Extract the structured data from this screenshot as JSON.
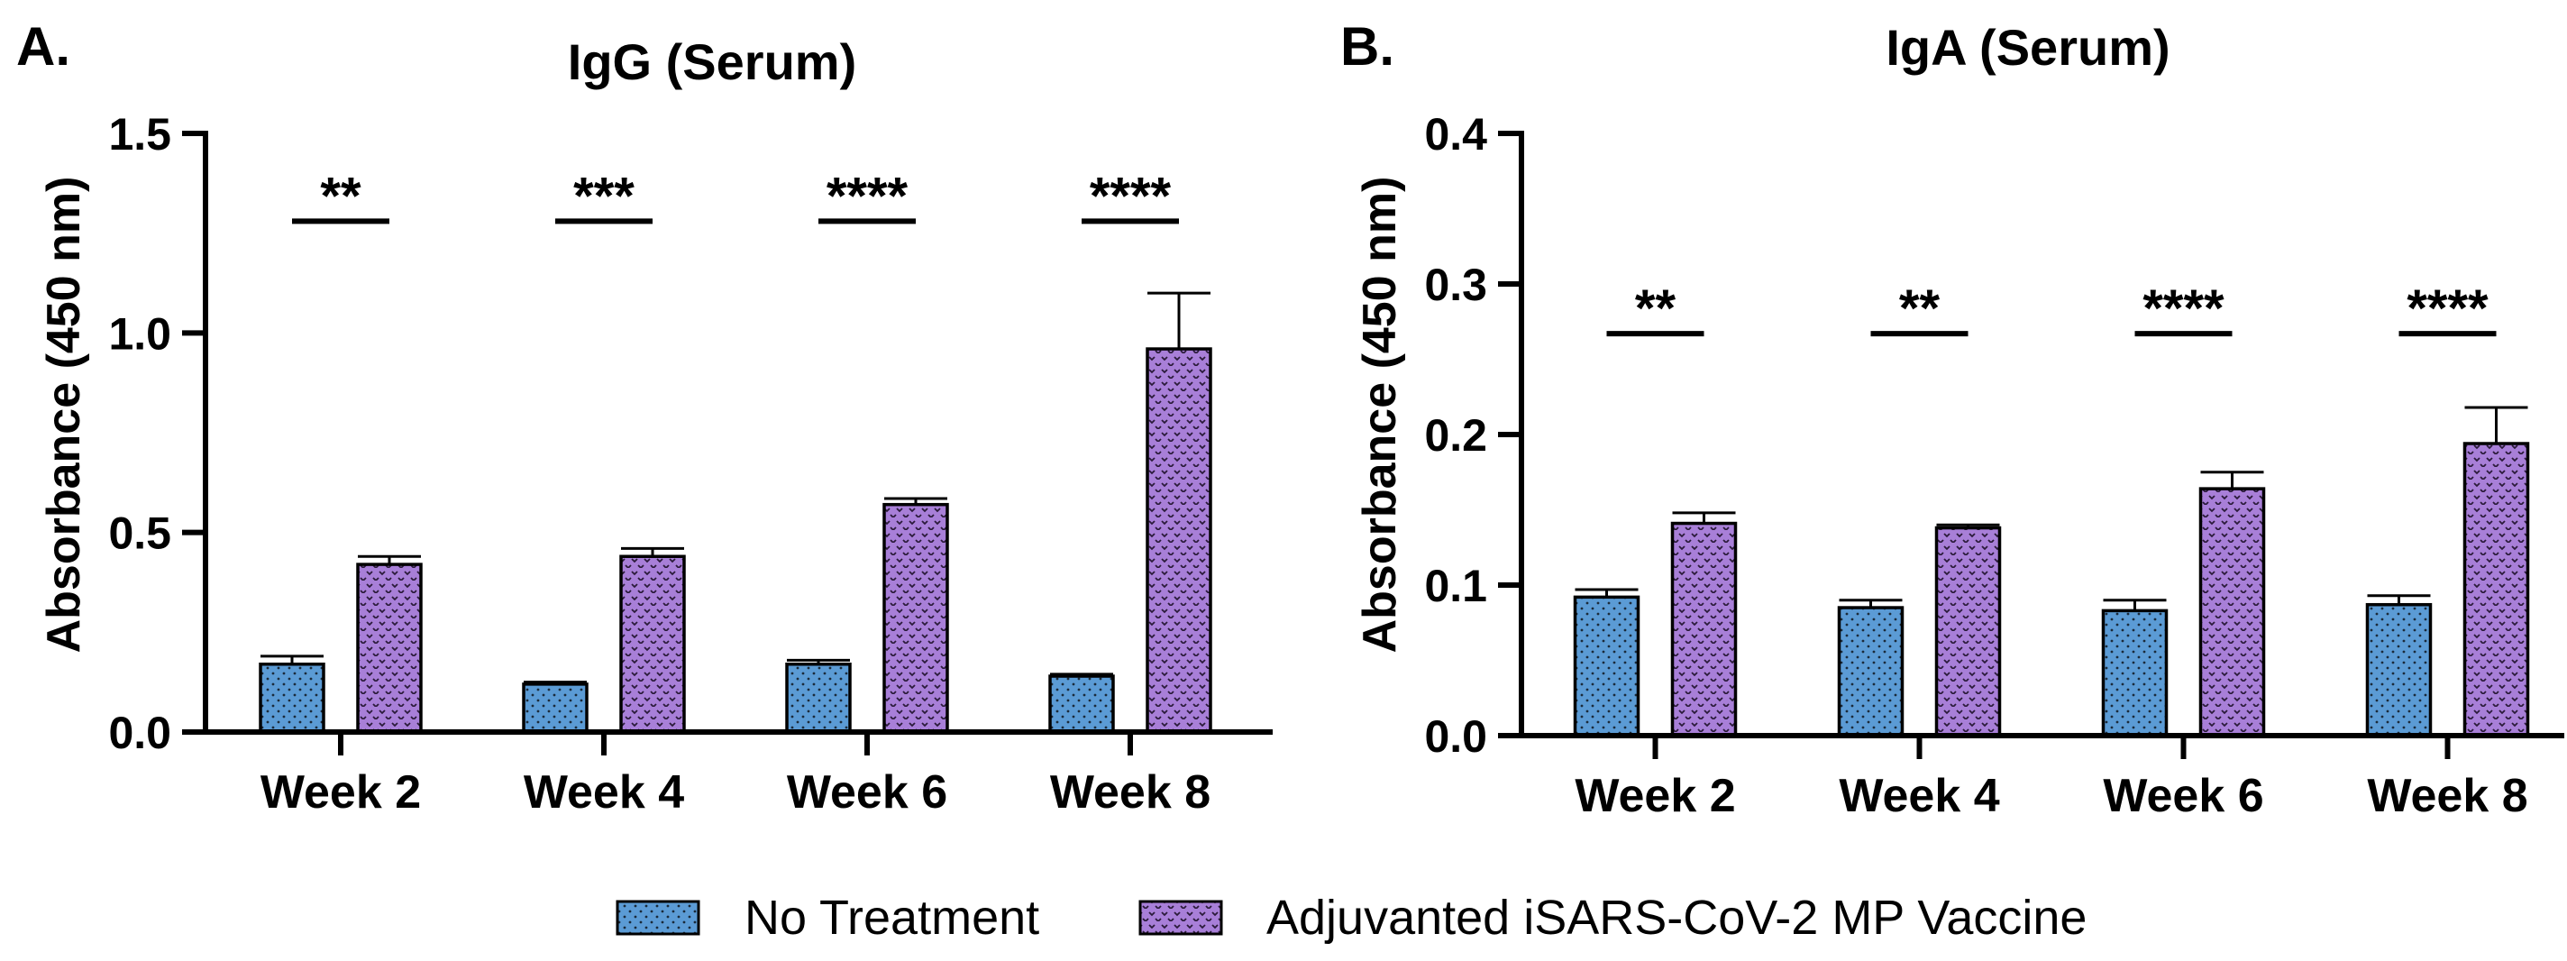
{
  "figure": {
    "legend": {
      "items": [
        {
          "label": "No Treatment",
          "color": "#5b9bd5",
          "pattern": "dots"
        },
        {
          "label": "Adjuvanted iSARS-CoV-2 MP Vaccine",
          "color": "#a87fd8",
          "pattern": "waves"
        }
      ]
    }
  },
  "chart_data": [
    {
      "type": "bar",
      "panel_label": "A.",
      "title": "IgG (Serum)",
      "xlabel": "",
      "ylabel": "Absorbance (450 nm)",
      "ylim": [
        0,
        1.5
      ],
      "yticks": [
        0,
        0.5,
        1.0,
        1.5
      ],
      "ytick_labels": [
        "0.0",
        "0.5",
        "1.0",
        "1.5"
      ],
      "categories": [
        "Week 2",
        "Week 4",
        "Week 6",
        "Week 8"
      ],
      "series": [
        {
          "name": "No Treatment",
          "color": "#5b9bd5",
          "pattern": "dots",
          "values": [
            0.17,
            0.12,
            0.17,
            0.14
          ],
          "errors": [
            0.02,
            0.005,
            0.01,
            0.005
          ]
        },
        {
          "name": "Adjuvanted iSARS-CoV-2 MP Vaccine",
          "color": "#a87fd8",
          "pattern": "waves",
          "values": [
            0.42,
            0.44,
            0.57,
            0.96
          ],
          "errors": [
            0.02,
            0.02,
            0.015,
            0.14
          ]
        }
      ],
      "significance": [
        "**",
        "***",
        "****",
        "****"
      ],
      "significance_level": 1.28
    },
    {
      "type": "bar",
      "panel_label": "B.",
      "title": "IgA (Serum)",
      "xlabel": "",
      "ylabel": "Absorbance (450 nm)",
      "ylim": [
        0,
        0.4
      ],
      "yticks": [
        0,
        0.1,
        0.2,
        0.3,
        0.4
      ],
      "ytick_labels": [
        "0.0",
        "0.1",
        "0.2",
        "0.3",
        "0.4"
      ],
      "categories": [
        "Week 2",
        "Week 4",
        "Week 6",
        "Week 8"
      ],
      "series": [
        {
          "name": "No Treatment",
          "color": "#5b9bd5",
          "pattern": "dots",
          "values": [
            0.092,
            0.085,
            0.083,
            0.087
          ],
          "errors": [
            0.005,
            0.005,
            0.007,
            0.006
          ]
        },
        {
          "name": "Adjuvanted iSARS-CoV-2 MP Vaccine",
          "color": "#a87fd8",
          "pattern": "waves",
          "values": [
            0.141,
            0.138,
            0.164,
            0.194
          ],
          "errors": [
            0.007,
            0.002,
            0.011,
            0.024
          ]
        }
      ],
      "significance": [
        "**",
        "**",
        "****",
        "****"
      ],
      "significance_level": 0.267
    }
  ]
}
